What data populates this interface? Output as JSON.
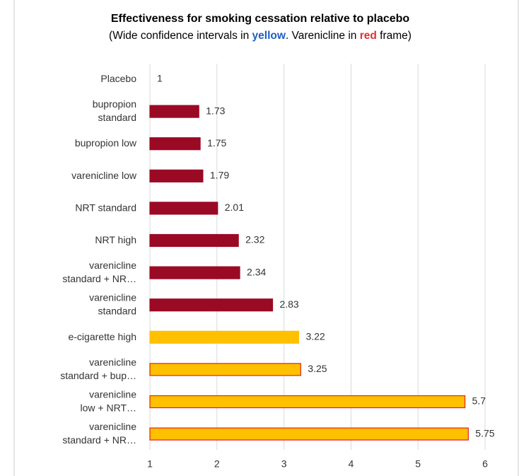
{
  "chart_data": {
    "type": "barh",
    "title": "Effectiveness for smoking cessation relative to placebo",
    "subtitle": [
      "(Wide confidence intervals in ",
      "yellow",
      ". Varenicline in ",
      "red",
      " frame)"
    ],
    "subtitle_colors": [
      "#000000",
      "#1f5fbf",
      "#000000",
      "#e03030",
      "#000000"
    ],
    "categories": [
      [
        "Placebo"
      ],
      [
        "bupropion",
        "standard"
      ],
      [
        "bupropion low"
      ],
      [
        "varenicline low"
      ],
      [
        "NRT standard"
      ],
      [
        "NRT high"
      ],
      [
        "varenicline",
        "standard + NR…"
      ],
      [
        "varenicline",
        "standard"
      ],
      [
        "e-cigarette high"
      ],
      [
        "varenicline",
        "standard + bup…"
      ],
      [
        "varenicline",
        "low + NRT…"
      ],
      [
        "varenicline",
        "standard + NR…"
      ]
    ],
    "values": [
      1,
      1.73,
      1.75,
      1.79,
      2.01,
      2.32,
      2.34,
      2.83,
      3.22,
      3.25,
      5.7,
      5.75
    ],
    "colors": [
      "#9b0a25",
      "#9b0a25",
      "#9b0a25",
      "#9b0a25",
      "#9b0a25",
      "#9b0a25",
      "#9b0a25",
      "#9b0a25",
      "#ffc000",
      "#ffc000",
      "#ffc000",
      "#ffc000"
    ],
    "border_colors": [
      "#9b0a25",
      "#9b0a25",
      "#9b0a25",
      "#9b0a25",
      "#9b0a25",
      "#9b0a25",
      "#9b0a25",
      "#9b0a25",
      "#ffc000",
      "#e02020",
      "#e02020",
      "#e02020"
    ],
    "xlim": [
      1,
      6
    ],
    "xticks": [
      1,
      2,
      3,
      4,
      5,
      6
    ],
    "grid": true
  }
}
